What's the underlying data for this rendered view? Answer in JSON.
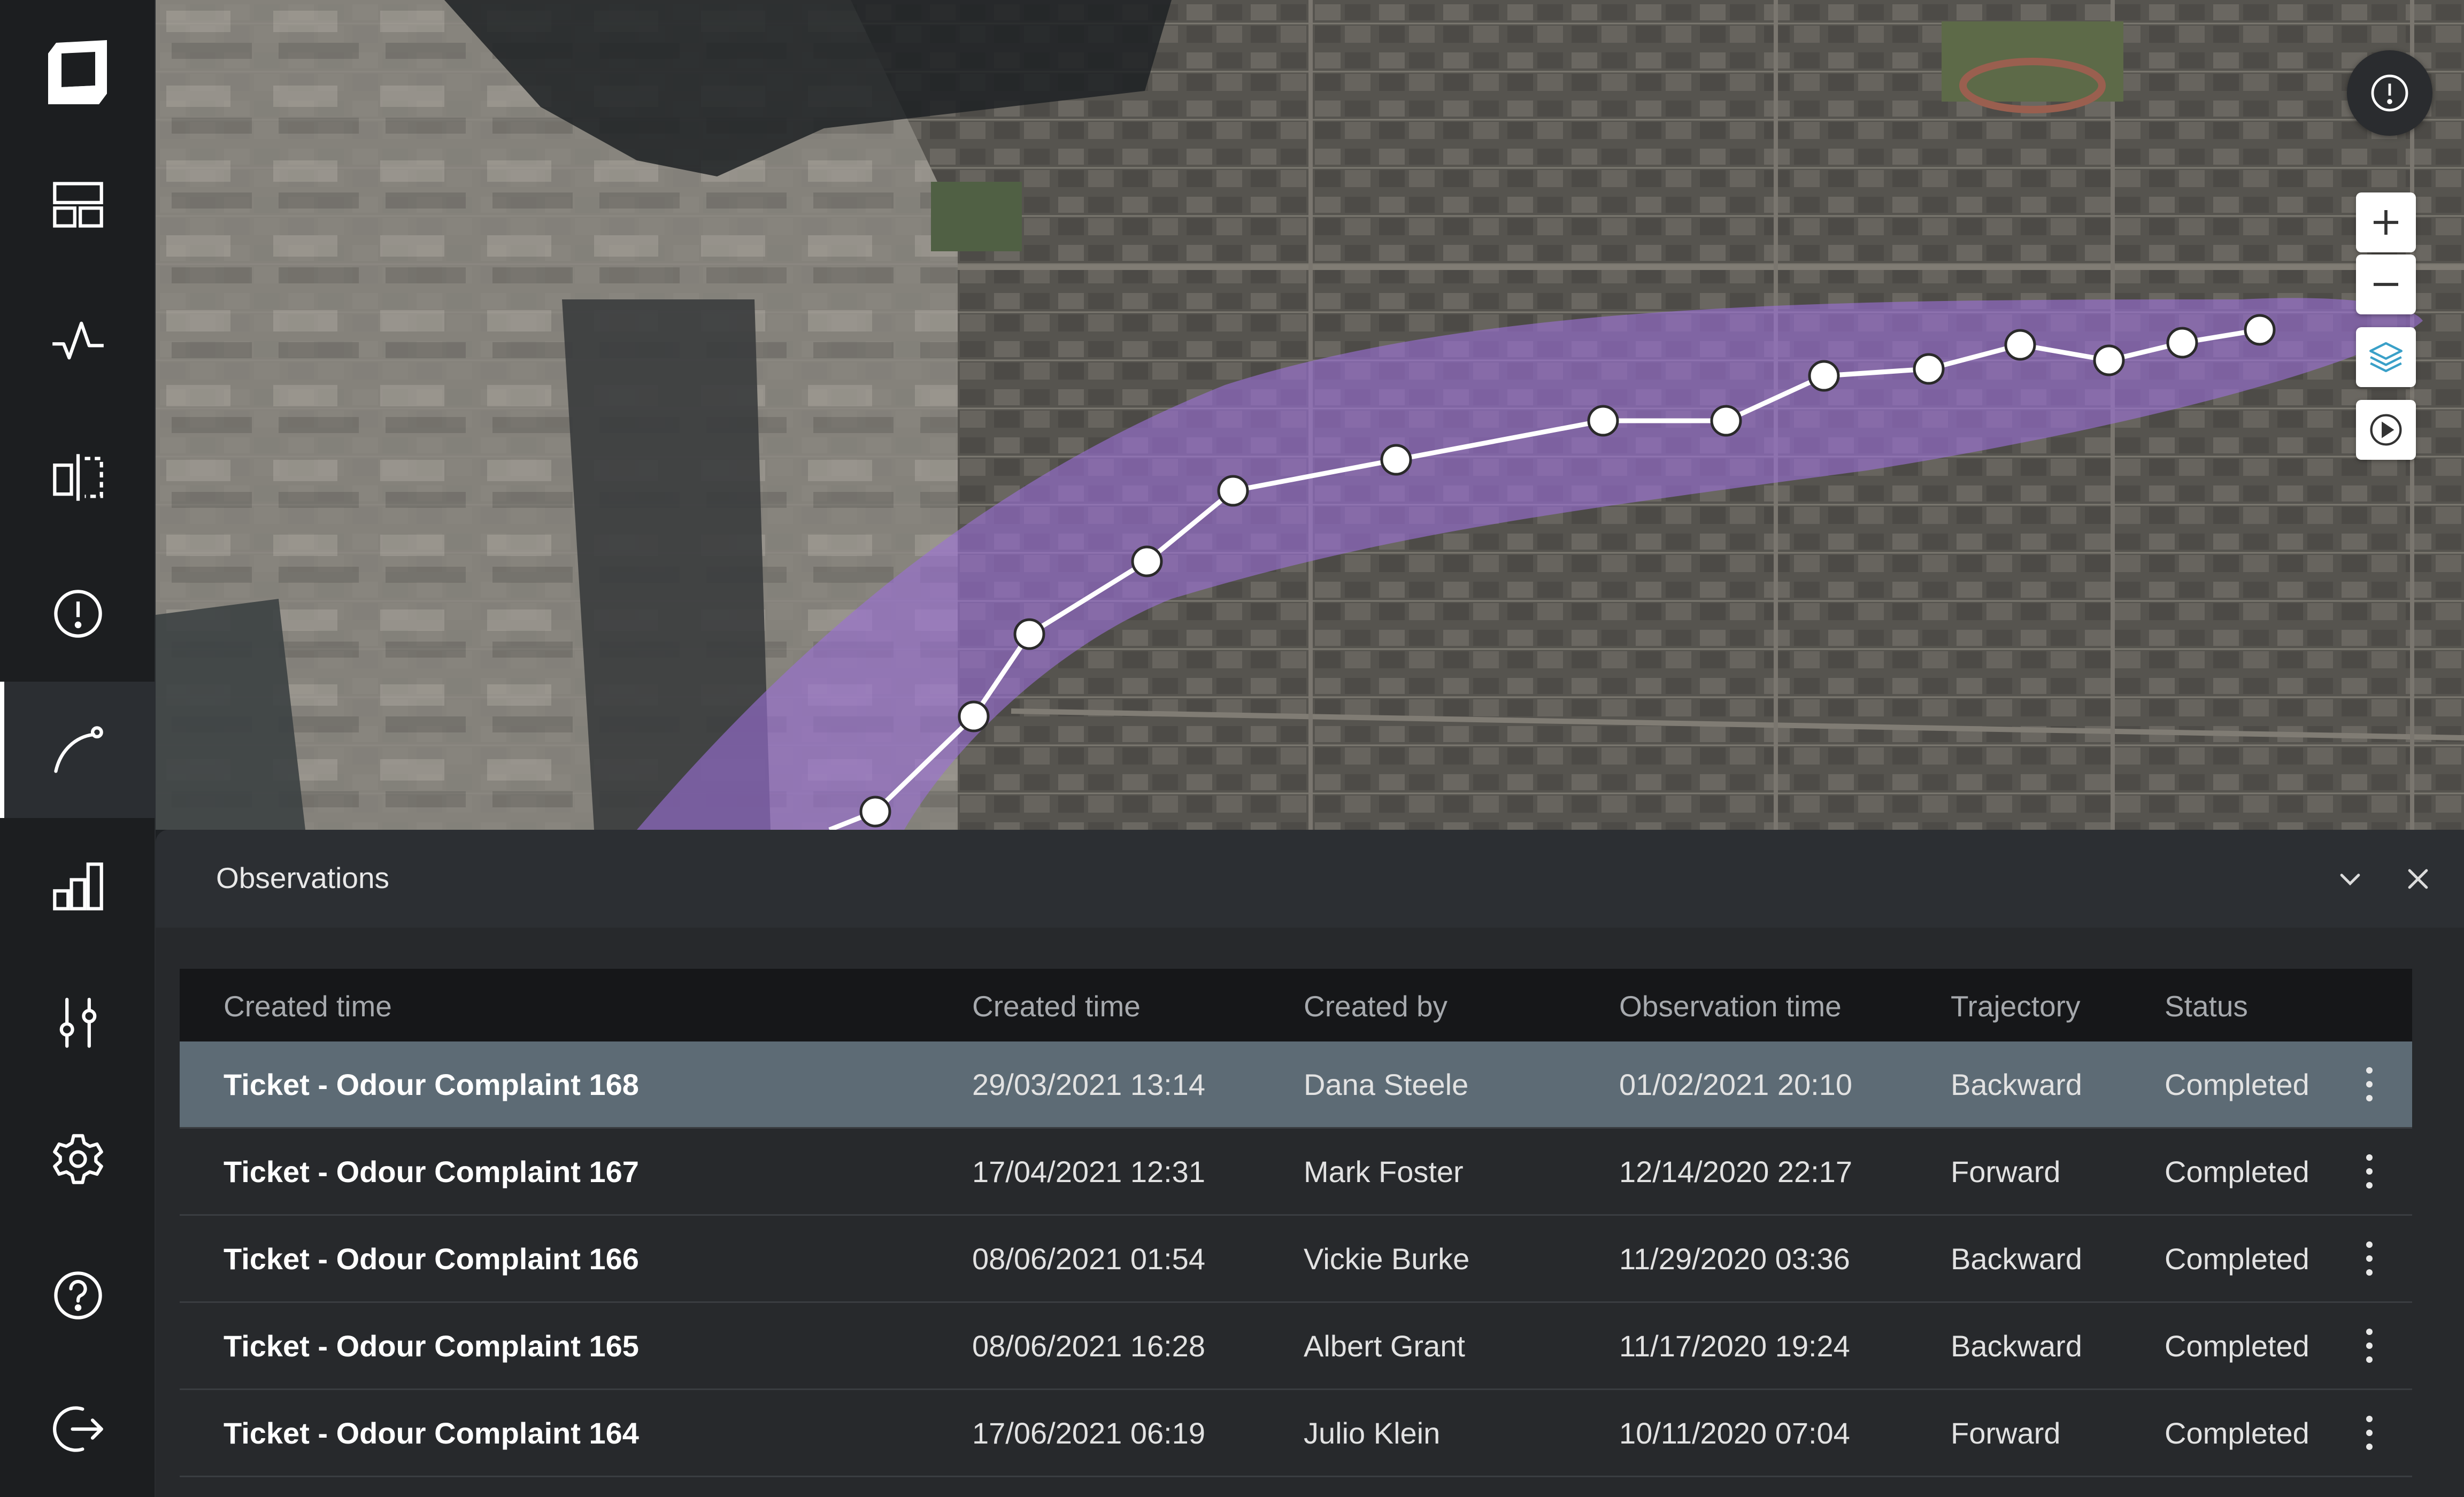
{
  "sidebar": {
    "items": [
      {
        "name": "dashboard",
        "icon": "dashboard-icon"
      },
      {
        "name": "activity",
        "icon": "activity-icon"
      },
      {
        "name": "compare",
        "icon": "compare-icon"
      },
      {
        "name": "alerts",
        "icon": "alert-circle-icon"
      },
      {
        "name": "trajectory",
        "icon": "trajectory-icon",
        "active": true
      },
      {
        "name": "analytics",
        "icon": "bar-chart-icon"
      },
      {
        "name": "controls",
        "icon": "sliders-icon"
      },
      {
        "name": "settings",
        "icon": "gear-icon"
      },
      {
        "name": "help",
        "icon": "help-icon"
      },
      {
        "name": "logout",
        "icon": "logout-icon"
      }
    ]
  },
  "map": {
    "plume_color": "#9b6fd6",
    "path_color": "#ffffff",
    "controls": [
      "zoom-in-icon",
      "zoom-out-icon",
      "layers-icon",
      "play-icon"
    ],
    "alert": "alert-circle-icon"
  },
  "panel": {
    "title": "Observations",
    "columns": [
      "Created time",
      "Created time",
      "Created by",
      "Observation time",
      "Trajectory",
      "Status"
    ],
    "rows": [
      {
        "name": "Ticket - Odour Complaint 168",
        "created": "29/03/2021 13:14",
        "by": "Dana Steele",
        "obs": "01/02/2021 20:10",
        "trajectory": "Backward",
        "status": "Completed"
      },
      {
        "name": "Ticket - Odour Complaint 167",
        "created": "17/04/2021 12:31",
        "by": "Mark Foster",
        "obs": "12/14/2020 22:17",
        "trajectory": "Forward",
        "status": "Completed"
      },
      {
        "name": "Ticket - Odour Complaint 166",
        "created": "08/06/2021 01:54",
        "by": "Vickie Burke",
        "obs": "11/29/2020 03:36",
        "trajectory": "Backward",
        "status": "Completed"
      },
      {
        "name": "Ticket - Odour Complaint 165",
        "created": "08/06/2021 16:28",
        "by": "Albert Grant",
        "obs": "11/17/2020 19:24",
        "trajectory": "Backward",
        "status": "Completed"
      },
      {
        "name": "Ticket - Odour Complaint 164",
        "created": "17/06/2021 06:19",
        "by": "Julio Klein",
        "obs": "10/11/2020 07:04",
        "trajectory": "Forward",
        "status": "Completed"
      }
    ],
    "selected_row": 0
  },
  "colors": {
    "sidebar_bg": "#1c1e20",
    "panel_bg": "#27292c",
    "selected_row": "#5d6b75",
    "accent": "#3aa0c8"
  }
}
